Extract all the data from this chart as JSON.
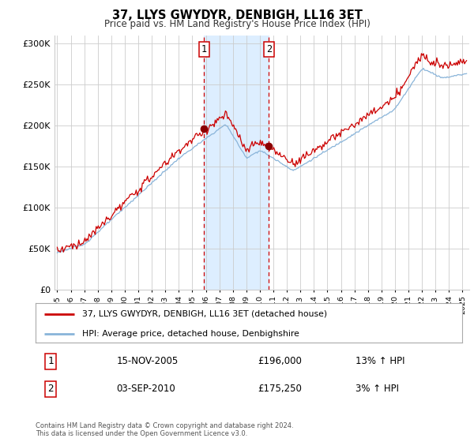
{
  "title": "37, LLYS GWYDYR, DENBIGH, LL16 3ET",
  "subtitle": "Price paid vs. HM Land Registry's House Price Index (HPI)",
  "ytick_values": [
    0,
    50000,
    100000,
    150000,
    200000,
    250000,
    300000
  ],
  "ylim": [
    0,
    310000
  ],
  "xlim_start": 1994.8,
  "xlim_end": 2025.5,
  "purchase1_date": 2005.875,
  "purchase1_price": 196000,
  "purchase2_date": 2010.67,
  "purchase2_price": 175250,
  "shade_color": "#ddeeff",
  "vline_color": "#cc0000",
  "hpi_line_color": "#89b4d9",
  "price_line_color": "#cc0000",
  "legend_label_red": "37, LLYS GWYDYR, DENBIGH, LL16 3ET (detached house)",
  "legend_label_blue": "HPI: Average price, detached house, Denbighshire",
  "table_row1_num": "1",
  "table_row1_date": "15-NOV-2005",
  "table_row1_price": "£196,000",
  "table_row1_hpi": "13% ↑ HPI",
  "table_row2_num": "2",
  "table_row2_date": "03-SEP-2010",
  "table_row2_price": "£175,250",
  "table_row2_hpi": "3% ↑ HPI",
  "footnote": "Contains HM Land Registry data © Crown copyright and database right 2024.\nThis data is licensed under the Open Government Licence v3.0.",
  "background_color": "#ffffff",
  "plot_bg_color": "#ffffff",
  "grid_color": "#cccccc"
}
